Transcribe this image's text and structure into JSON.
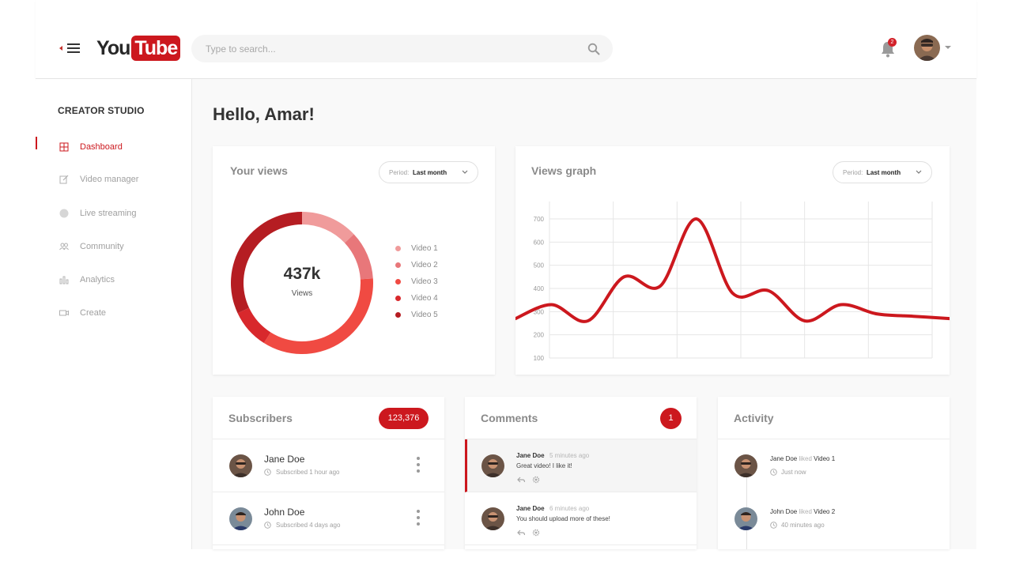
{
  "header": {
    "logo_you": "You",
    "logo_tube": "Tube",
    "search_placeholder": "Type to search...",
    "notification_count": "2"
  },
  "sidebar": {
    "title": "CREATOR STUDIO",
    "items": [
      {
        "label": "Dashboard",
        "icon": "grid-icon",
        "active": true
      },
      {
        "label": "Video manager",
        "icon": "edit-icon"
      },
      {
        "label": "Live streaming",
        "icon": "live-dot-icon"
      },
      {
        "label": "Community",
        "icon": "people-icon"
      },
      {
        "label": "Analytics",
        "icon": "bar-chart-icon"
      },
      {
        "label": "Create",
        "icon": "video-camera-icon"
      }
    ]
  },
  "main": {
    "greeting": "Hello, Amar!",
    "views_card": {
      "title": "Your views",
      "period_label": "Period:",
      "period_value": "Last month",
      "total": "437k",
      "total_label": "Views",
      "legend": [
        "Video 1",
        "Video 2",
        "Video 3",
        "Video 4",
        "Video 5"
      ]
    },
    "graph_card": {
      "title": "Views graph",
      "period_label": "Period:",
      "period_value": "Last month"
    },
    "subscribers": {
      "title": "Subscribers",
      "count": "123,376",
      "items": [
        {
          "name": "Jane Doe",
          "meta": "Subscribed 1 hour ago"
        },
        {
          "name": "John Doe",
          "meta": "Subscribed 4 days ago"
        }
      ]
    },
    "comments": {
      "title": "Comments",
      "count": "1",
      "items": [
        {
          "name": "Jane Doe",
          "time": "5 minutes ago",
          "text": "Great video! I like it!"
        },
        {
          "name": "Jane Doe",
          "time": "6 minutes ago",
          "text": "You should upload more of these!"
        }
      ]
    },
    "activity": {
      "title": "Activity",
      "items": [
        {
          "name": "Jane Doe",
          "verb": "liked",
          "target": "Video 1",
          "time": "Just now"
        },
        {
          "name": "John Doe",
          "verb": "liked",
          "target": "Video 2",
          "time": "40 minutes ago"
        }
      ]
    }
  },
  "colors": {
    "brand_red": "#cc181e",
    "donut_slices": [
      "#f09b9b",
      "#e8777a",
      "#f04a42",
      "#d8282c",
      "#b51d22"
    ]
  },
  "chart_data": {
    "type": "line",
    "ylim": [
      100,
      700
    ],
    "yticks": [
      100,
      200,
      300,
      400,
      500,
      600,
      700
    ],
    "series": [
      {
        "x": [
          0,
          1,
          2,
          3,
          4,
          5,
          6,
          7,
          8,
          9,
          10,
          11,
          12
        ],
        "values": [
          270,
          330,
          260,
          450,
          410,
          700,
          380,
          390,
          260,
          330,
          290,
          280,
          270
        ]
      }
    ],
    "donut": {
      "type": "pie",
      "categories": [
        "Video 1",
        "Video 2",
        "Video 3",
        "Video 4",
        "Video 5"
      ],
      "values": [
        13,
        11,
        35,
        9,
        32
      ]
    }
  }
}
